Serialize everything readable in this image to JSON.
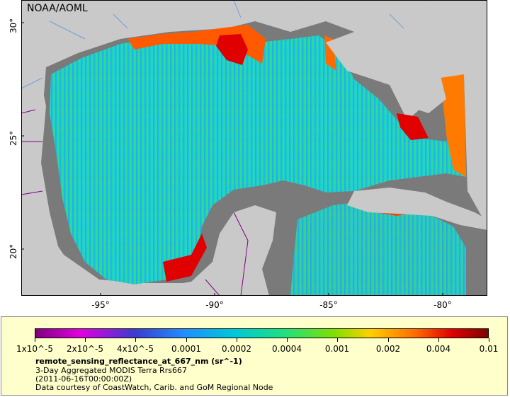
{
  "credit_tag": "NOAA/AOML",
  "latitude_labels": [
    "30°",
    "25°",
    "20°"
  ],
  "longitude_labels": [
    "-95°",
    "-90°",
    "-85°",
    "-80°"
  ],
  "colorbar": {
    "ticks": [
      "1x10^-5",
      "2x10^-5",
      "4x10^-5",
      "0.0001",
      "0.0002",
      "0.0004",
      "0.001",
      "0.002",
      "0.004",
      "0.01"
    ]
  },
  "legend": {
    "variable": "remote_sensing_reflectance_at_667_nm (sr^-1)",
    "dataset": "3-Day Aggregated MODIS Terra Rrs667",
    "time": "(2011-06-16T00:00:00Z)",
    "courtesy": "Data courtesy of CoastWatch, Carib. and GoM Regional Node"
  },
  "colors": {
    "land": "#c9c9c9",
    "no_data": "#7a7a7a",
    "ocean_mid": "#1fd89a",
    "high": "#e00000",
    "boundaries": "#800080",
    "rivers": "#6f9fd8",
    "legend_bg": "#ffffcc"
  }
}
